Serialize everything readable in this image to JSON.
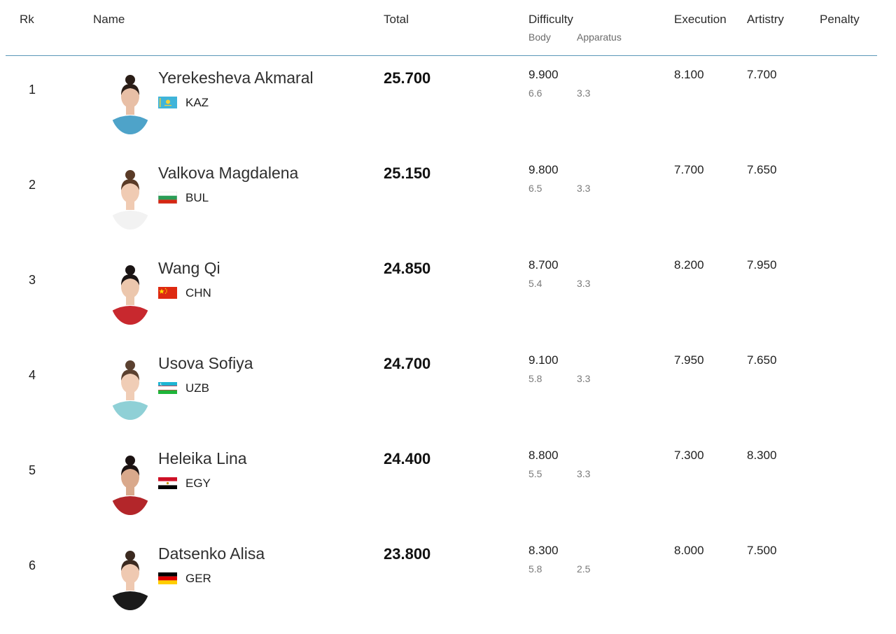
{
  "columns": {
    "rank": "Rk",
    "name": "Name",
    "total": "Total",
    "difficulty": "Difficulty",
    "body": "Body",
    "apparatus": "Apparatus",
    "execution": "Execution",
    "artistry": "Artistry",
    "penalty": "Penalty"
  },
  "rows": [
    {
      "rank": "1",
      "name": "Yerekesheva Akmaral",
      "nation": "KAZ",
      "flag": "flag-kaz-icon",
      "total": "25.700",
      "difficulty": "9.900",
      "body": "6.6",
      "apparatus": "3.3",
      "execution": "8.100",
      "artistry": "7.700",
      "penalty": "",
      "shirt_color": "#4ea3c9",
      "hair_color": "#2a1d17",
      "skin_color": "#e8bfa6"
    },
    {
      "rank": "2",
      "name": "Valkova Magdalena",
      "nation": "BUL",
      "flag": "flag-bul-icon",
      "total": "25.150",
      "difficulty": "9.800",
      "body": "6.5",
      "apparatus": "3.3",
      "execution": "7.700",
      "artistry": "7.650",
      "penalty": "",
      "shirt_color": "#f2f2f2",
      "hair_color": "#5a3b27",
      "skin_color": "#f0cbb3"
    },
    {
      "rank": "3",
      "name": "Wang Qi",
      "nation": "CHN",
      "flag": "flag-chn-icon",
      "total": "24.850",
      "difficulty": "8.700",
      "body": "5.4",
      "apparatus": "3.3",
      "execution": "8.200",
      "artistry": "7.950",
      "penalty": "",
      "shirt_color": "#c8282e",
      "hair_color": "#1a1414",
      "skin_color": "#ecc7ad"
    },
    {
      "rank": "4",
      "name": "Usova Sofiya",
      "nation": "UZB",
      "flag": "flag-uzb-icon",
      "total": "24.700",
      "difficulty": "9.100",
      "body": "5.8",
      "apparatus": "3.3",
      "execution": "7.950",
      "artistry": "7.650",
      "penalty": "",
      "shirt_color": "#8fd0d6",
      "hair_color": "#5b4130",
      "skin_color": "#f0cdb6"
    },
    {
      "rank": "5",
      "name": "Heleika Lina",
      "nation": "EGY",
      "flag": "flag-egy-icon",
      "total": "24.400",
      "difficulty": "8.800",
      "body": "5.5",
      "apparatus": "3.3",
      "execution": "7.300",
      "artistry": "8.300",
      "penalty": "",
      "shirt_color": "#b3262a",
      "hair_color": "#1b1212",
      "skin_color": "#d9a98c"
    },
    {
      "rank": "6",
      "name": "Datsenko Alisa",
      "nation": "GER",
      "flag": "flag-ger-icon",
      "total": "23.800",
      "difficulty": "8.300",
      "body": "5.8",
      "apparatus": "2.5",
      "execution": "8.000",
      "artistry": "7.500",
      "penalty": "",
      "shirt_color": "#1a1a1a",
      "hair_color": "#3b2a20",
      "skin_color": "#efc9b1"
    }
  ]
}
